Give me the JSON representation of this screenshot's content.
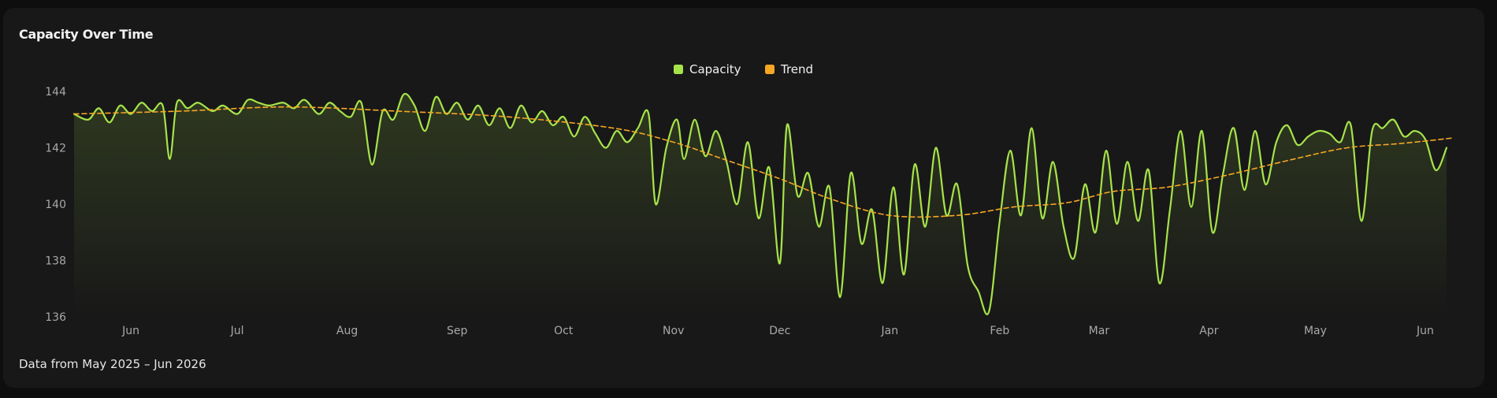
{
  "title": "Capacity Over Time",
  "footer": "Data from May 2025 – Jun 2026",
  "colors": {
    "capacity": "#a6e34a",
    "trend": "#f5a623"
  },
  "chart_data": {
    "type": "line",
    "title": "Capacity Over Time",
    "xlabel": "",
    "ylabel": "",
    "ylim": [
      136,
      144
    ],
    "yticks": [
      "136",
      "138",
      "140",
      "142",
      "144"
    ],
    "xlim": [
      "2025-05-16",
      "2026-06-09"
    ],
    "x_tick_labels": [
      "Jun",
      "Jul",
      "Aug",
      "Sep",
      "Oct",
      "Nov",
      "Dec",
      "Jan",
      "Feb",
      "Mar",
      "Apr",
      "May",
      "Jun"
    ],
    "x_tick_dates": [
      "2025-06-01",
      "2025-07-01",
      "2025-08-01",
      "2025-09-01",
      "2025-10-01",
      "2025-11-01",
      "2025-12-01",
      "2026-01-01",
      "2026-02-01",
      "2026-03-01",
      "2026-04-01",
      "2026-05-01",
      "2026-06-01"
    ],
    "legend_position": "top-center",
    "grid": false,
    "series": [
      {
        "name": "Capacity",
        "color": "#a6e34a",
        "style": "solid",
        "area_fill": true,
        "points": [
          [
            "2025-05-16",
            143.2
          ],
          [
            "2025-05-20",
            143.0
          ],
          [
            "2025-05-23",
            143.4
          ],
          [
            "2025-05-26",
            142.9
          ],
          [
            "2025-05-29",
            143.5
          ],
          [
            "2025-06-01",
            143.2
          ],
          [
            "2025-06-04",
            143.6
          ],
          [
            "2025-06-07",
            143.3
          ],
          [
            "2025-06-10",
            143.5
          ],
          [
            "2025-06-12",
            141.6
          ],
          [
            "2025-06-14",
            143.6
          ],
          [
            "2025-06-17",
            143.4
          ],
          [
            "2025-06-20",
            143.6
          ],
          [
            "2025-06-24",
            143.3
          ],
          [
            "2025-06-27",
            143.5
          ],
          [
            "2025-07-01",
            143.2
          ],
          [
            "2025-07-04",
            143.7
          ],
          [
            "2025-07-07",
            143.6
          ],
          [
            "2025-07-10",
            143.5
          ],
          [
            "2025-07-14",
            143.6
          ],
          [
            "2025-07-17",
            143.4
          ],
          [
            "2025-07-20",
            143.7
          ],
          [
            "2025-07-24",
            143.2
          ],
          [
            "2025-07-27",
            143.6
          ],
          [
            "2025-07-30",
            143.3
          ],
          [
            "2025-08-02",
            143.1
          ],
          [
            "2025-08-05",
            143.6
          ],
          [
            "2025-08-08",
            141.4
          ],
          [
            "2025-08-11",
            143.3
          ],
          [
            "2025-08-14",
            143.0
          ],
          [
            "2025-08-17",
            143.9
          ],
          [
            "2025-08-20",
            143.5
          ],
          [
            "2025-08-23",
            142.6
          ],
          [
            "2025-08-26",
            143.8
          ],
          [
            "2025-08-29",
            143.2
          ],
          [
            "2025-09-01",
            143.6
          ],
          [
            "2025-09-04",
            143.0
          ],
          [
            "2025-09-07",
            143.5
          ],
          [
            "2025-09-10",
            142.8
          ],
          [
            "2025-09-13",
            143.4
          ],
          [
            "2025-09-16",
            142.7
          ],
          [
            "2025-09-19",
            143.5
          ],
          [
            "2025-09-22",
            142.9
          ],
          [
            "2025-09-25",
            143.3
          ],
          [
            "2025-09-28",
            142.8
          ],
          [
            "2025-10-01",
            143.1
          ],
          [
            "2025-10-04",
            142.4
          ],
          [
            "2025-10-07",
            143.1
          ],
          [
            "2025-10-10",
            142.5
          ],
          [
            "2025-10-13",
            142.0
          ],
          [
            "2025-10-16",
            142.6
          ],
          [
            "2025-10-19",
            142.2
          ],
          [
            "2025-10-22",
            142.7
          ],
          [
            "2025-10-25",
            143.2
          ],
          [
            "2025-10-27",
            140.0
          ],
          [
            "2025-10-30",
            142.0
          ],
          [
            "2025-11-02",
            143.0
          ],
          [
            "2025-11-04",
            141.6
          ],
          [
            "2025-11-07",
            143.0
          ],
          [
            "2025-11-10",
            141.7
          ],
          [
            "2025-11-13",
            142.6
          ],
          [
            "2025-11-16",
            141.5
          ],
          [
            "2025-11-19",
            140.0
          ],
          [
            "2025-11-22",
            142.2
          ],
          [
            "2025-11-25",
            139.5
          ],
          [
            "2025-11-28",
            141.3
          ],
          [
            "2025-12-01",
            137.9
          ],
          [
            "2025-12-03",
            142.8
          ],
          [
            "2025-12-06",
            140.3
          ],
          [
            "2025-12-09",
            141.1
          ],
          [
            "2025-12-12",
            139.2
          ],
          [
            "2025-12-15",
            140.6
          ],
          [
            "2025-12-18",
            136.7
          ],
          [
            "2025-12-21",
            141.1
          ],
          [
            "2025-12-24",
            138.6
          ],
          [
            "2025-12-27",
            139.8
          ],
          [
            "2025-12-30",
            137.2
          ],
          [
            "2026-01-02",
            140.6
          ],
          [
            "2026-01-05",
            137.5
          ],
          [
            "2026-01-08",
            141.4
          ],
          [
            "2026-01-11",
            139.2
          ],
          [
            "2026-01-14",
            142.0
          ],
          [
            "2026-01-17",
            139.6
          ],
          [
            "2026-01-20",
            140.7
          ],
          [
            "2026-01-23",
            137.8
          ],
          [
            "2026-01-26",
            136.9
          ],
          [
            "2026-01-29",
            136.2
          ],
          [
            "2026-02-01",
            139.4
          ],
          [
            "2026-02-04",
            141.9
          ],
          [
            "2026-02-07",
            139.6
          ],
          [
            "2026-02-10",
            142.7
          ],
          [
            "2026-02-13",
            139.5
          ],
          [
            "2026-02-16",
            141.5
          ],
          [
            "2026-02-19",
            139.2
          ],
          [
            "2026-02-22",
            138.1
          ],
          [
            "2026-02-25",
            140.7
          ],
          [
            "2026-02-28",
            139.0
          ],
          [
            "2026-03-03",
            141.9
          ],
          [
            "2026-03-06",
            139.3
          ],
          [
            "2026-03-09",
            141.5
          ],
          [
            "2026-03-12",
            139.4
          ],
          [
            "2026-03-15",
            141.2
          ],
          [
            "2026-03-18",
            137.2
          ],
          [
            "2026-03-21",
            139.8
          ],
          [
            "2026-03-24",
            142.6
          ],
          [
            "2026-03-27",
            139.9
          ],
          [
            "2026-03-30",
            142.6
          ],
          [
            "2026-04-02",
            139.0
          ],
          [
            "2026-04-05",
            141.1
          ],
          [
            "2026-04-08",
            142.7
          ],
          [
            "2026-04-11",
            140.5
          ],
          [
            "2026-04-14",
            142.6
          ],
          [
            "2026-04-17",
            140.7
          ],
          [
            "2026-04-20",
            142.2
          ],
          [
            "2026-04-23",
            142.8
          ],
          [
            "2026-04-26",
            142.1
          ],
          [
            "2026-04-29",
            142.4
          ],
          [
            "2026-05-02",
            142.6
          ],
          [
            "2026-05-05",
            142.5
          ],
          [
            "2026-05-08",
            142.2
          ],
          [
            "2026-05-11",
            142.8
          ],
          [
            "2026-05-14",
            139.4
          ],
          [
            "2026-05-17",
            142.6
          ],
          [
            "2026-05-20",
            142.7
          ],
          [
            "2026-05-23",
            143.0
          ],
          [
            "2026-05-26",
            142.4
          ],
          [
            "2026-05-29",
            142.6
          ],
          [
            "2026-06-01",
            142.3
          ],
          [
            "2026-06-04",
            141.2
          ],
          [
            "2026-06-07",
            142.0
          ]
        ]
      },
      {
        "name": "Trend",
        "color": "#f5a623",
        "style": "dashed",
        "points": [
          [
            "2025-05-16",
            143.2
          ],
          [
            "2025-06-15",
            143.3
          ],
          [
            "2025-07-15",
            143.45
          ],
          [
            "2025-08-15",
            143.3
          ],
          [
            "2025-09-15",
            143.1
          ],
          [
            "2025-10-15",
            142.7
          ],
          [
            "2025-11-01",
            142.2
          ],
          [
            "2025-11-15",
            141.6
          ],
          [
            "2025-12-01",
            140.9
          ],
          [
            "2025-12-15",
            140.2
          ],
          [
            "2026-01-01",
            139.6
          ],
          [
            "2026-01-20",
            139.6
          ],
          [
            "2026-02-05",
            139.9
          ],
          [
            "2026-02-20",
            140.05
          ],
          [
            "2026-03-05",
            140.45
          ],
          [
            "2026-03-20",
            140.6
          ],
          [
            "2026-04-05",
            141.0
          ],
          [
            "2026-04-25",
            141.6
          ],
          [
            "2026-05-10",
            142.0
          ],
          [
            "2026-05-25",
            142.15
          ],
          [
            "2026-06-09",
            142.35
          ]
        ]
      }
    ]
  }
}
